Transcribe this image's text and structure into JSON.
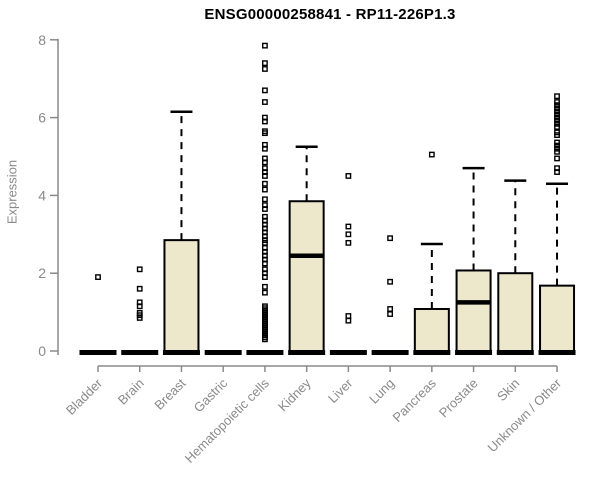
{
  "chart_data": {
    "type": "boxplot",
    "title": "ENSG00000258841 - RP11-226P1.3",
    "ylabel": "Expression",
    "xlabel": "",
    "ylim": [
      0,
      8
    ],
    "y_ticks": [
      0,
      2,
      4,
      6,
      8
    ],
    "grid": false,
    "legend": "none",
    "colors": {
      "box_fill": "#ede7cc",
      "box_stroke": "#000000",
      "median": "#000000",
      "whisker": "#000000",
      "outlier": "#000000",
      "axis": "#8a8a8a",
      "tick_text": "#8a8a8a",
      "title_text": "#000000",
      "background": "#ffffff"
    },
    "categories": [
      {
        "label": "Bladder",
        "whisker_low": 0,
        "q1": 0,
        "median": 0,
        "q3": 0,
        "whisker_high": 0,
        "outliers": [
          1.9
        ]
      },
      {
        "label": "Brain",
        "whisker_low": 0,
        "q1": 0,
        "median": 0,
        "q3": 0,
        "whisker_high": 0,
        "outliers": [
          2.1,
          1.6,
          1.25,
          1.15,
          0.98,
          0.92,
          0.85
        ]
      },
      {
        "label": "Breast",
        "whisker_low": 0,
        "q1": 0,
        "median": 0,
        "q3": 2.85,
        "whisker_high": 6.15,
        "outliers": []
      },
      {
        "label": "Gastric",
        "whisker_low": 0,
        "q1": 0,
        "median": 0,
        "q3": 0,
        "whisker_high": 0,
        "outliers": []
      },
      {
        "label": "Hematopoietic cells",
        "whisker_low": 0,
        "q1": 0,
        "median": 0,
        "q3": 0,
        "whisker_high": 0,
        "outliers": [
          7.85,
          7.4,
          7.25,
          6.7,
          6.4,
          6.0,
          5.9,
          5.65,
          5.6,
          5.3,
          5.2,
          4.95,
          4.85,
          4.7,
          4.6,
          4.5,
          4.3,
          4.15,
          3.9,
          3.75,
          3.65,
          3.45,
          3.35,
          3.25,
          3.15,
          3.05,
          2.95,
          2.85,
          2.78,
          2.65,
          2.55,
          2.45,
          2.35,
          2.25,
          2.1,
          2.0,
          1.9,
          1.65,
          1.5,
          1.15,
          1.1,
          1.05,
          1.0,
          0.95,
          0.9,
          0.85,
          0.8,
          0.75,
          0.7,
          0.65,
          0.6,
          0.55,
          0.5,
          0.45,
          0.4,
          0.35,
          0.3
        ]
      },
      {
        "label": "Kidney",
        "whisker_low": 0,
        "q1": 0,
        "median": 2.45,
        "q3": 3.85,
        "whisker_high": 5.25,
        "outliers": []
      },
      {
        "label": "Liver",
        "whisker_low": 0,
        "q1": 0,
        "median": 0,
        "q3": 0,
        "whisker_high": 0,
        "outliers": [
          4.5,
          3.2,
          3.0,
          2.78,
          0.9,
          0.78
        ]
      },
      {
        "label": "Lung",
        "whisker_low": 0,
        "q1": 0,
        "median": 0,
        "q3": 0,
        "whisker_high": 0,
        "outliers": [
          2.9,
          1.78,
          1.08,
          0.95
        ]
      },
      {
        "label": "Pancreas",
        "whisker_low": 0,
        "q1": 0,
        "median": 0,
        "q3": 1.08,
        "whisker_high": 2.75,
        "outliers": [
          5.05
        ]
      },
      {
        "label": "Prostate",
        "whisker_low": 0,
        "q1": 0,
        "median": 1.25,
        "q3": 2.07,
        "whisker_high": 4.7,
        "outliers": []
      },
      {
        "label": "Skin",
        "whisker_low": 0,
        "q1": 0,
        "median": 0,
        "q3": 2.0,
        "whisker_high": 4.38,
        "outliers": []
      },
      {
        "label": "Unknown / Other",
        "whisker_low": 0,
        "q1": 0,
        "median": 0,
        "q3": 1.68,
        "whisker_high": 4.3,
        "outliers": [
          6.55,
          6.4,
          6.32,
          6.24,
          6.16,
          6.08,
          6.0,
          5.92,
          5.84,
          5.76,
          5.62,
          5.55,
          5.36,
          5.28,
          5.2,
          5.12,
          4.95,
          4.7,
          4.6
        ]
      }
    ]
  }
}
